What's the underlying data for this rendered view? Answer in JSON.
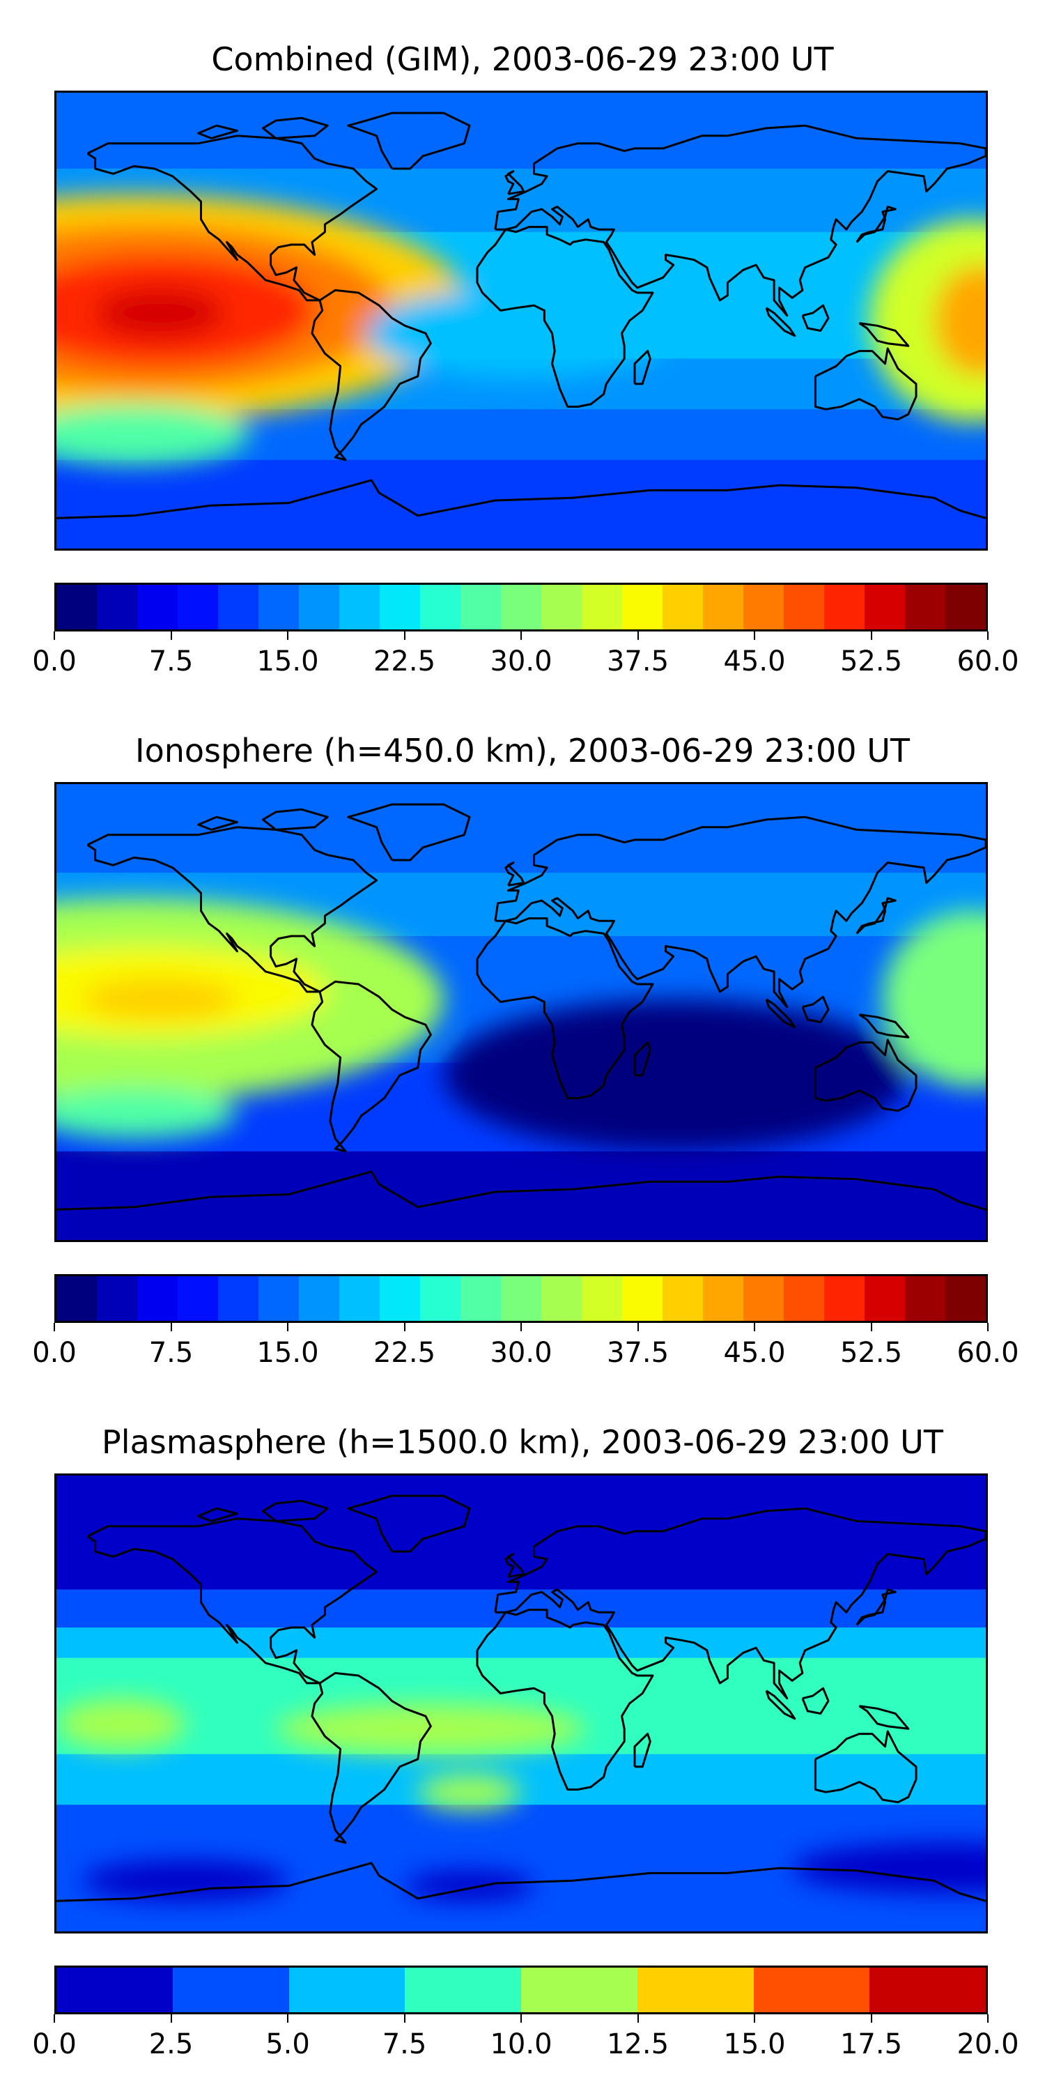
{
  "panels": [
    {
      "title": "Combined (GIM), 2003-06-29 23:00 UT",
      "colorbar": {
        "colors": [
          "#00007f",
          "#0000b8",
          "#0000f1",
          "#0010ff",
          "#003cff",
          "#0068ff",
          "#0094ff",
          "#00c0ff",
          "#00e8fa",
          "#26ffd1",
          "#50ffa6",
          "#7aff7d",
          "#a6ff50",
          "#d1ff26",
          "#fafa00",
          "#ffcf00",
          "#ffa700",
          "#ff7c00",
          "#ff5000",
          "#ff2500",
          "#d60000",
          "#9d0000",
          "#7f0000"
        ],
        "ticks": [
          "0.0",
          "7.5",
          "15.0",
          "22.5",
          "30.0",
          "37.5",
          "45.0",
          "52.5",
          "60.0"
        ]
      },
      "blobs": [
        {
          "lon": -150,
          "lat": 5,
          "rx": 130,
          "ry": 45,
          "color": "#ffcf00"
        },
        {
          "lon": -145,
          "lat": 5,
          "rx": 95,
          "ry": 33,
          "color": "#ff7c00"
        },
        {
          "lon": -140,
          "lat": 4,
          "rx": 60,
          "ry": 22,
          "color": "#ff2500"
        },
        {
          "lon": -140,
          "lat": 3,
          "rx": 25,
          "ry": 10,
          "color": "#d60000"
        },
        {
          "lon": 175,
          "lat": 0,
          "rx": 40,
          "ry": 40,
          "color": "#d1ff26"
        },
        {
          "lon": 178,
          "lat": 0,
          "rx": 18,
          "ry": 22,
          "color": "#ffa700"
        },
        {
          "lon": -150,
          "lat": -45,
          "rx": 45,
          "ry": 12,
          "color": "#50ffa6"
        },
        {
          "lon": 0,
          "lat": -5,
          "rx": 60,
          "ry": 18,
          "color": "#00c0ff"
        }
      ]
    },
    {
      "title": "Ionosphere  (h=450.0 km), 2003-06-29 23:00 UT",
      "colorbar": {
        "colors": [
          "#00007f",
          "#0000b8",
          "#0000f1",
          "#0010ff",
          "#003cff",
          "#0068ff",
          "#0094ff",
          "#00c0ff",
          "#00e8fa",
          "#26ffd1",
          "#50ffa6",
          "#7aff7d",
          "#a6ff50",
          "#d1ff26",
          "#fafa00",
          "#ffcf00",
          "#ffa700",
          "#ff7c00",
          "#ff5000",
          "#ff2500",
          "#d60000",
          "#9d0000",
          "#7f0000"
        ],
        "ticks": [
          "0.0",
          "7.5",
          "15.0",
          "22.5",
          "30.0",
          "37.5",
          "45.0",
          "52.5",
          "60.0"
        ]
      },
      "blobs": [
        {
          "lon": -150,
          "lat": 5,
          "rx": 120,
          "ry": 40,
          "color": "#a6ff50"
        },
        {
          "lon": -145,
          "lat": 8,
          "rx": 70,
          "ry": 18,
          "color": "#fafa00"
        },
        {
          "lon": -140,
          "lat": 5,
          "rx": 30,
          "ry": 8,
          "color": "#ffcf00"
        },
        {
          "lon": 175,
          "lat": 5,
          "rx": 35,
          "ry": 35,
          "color": "#7aff7d"
        },
        {
          "lon": -150,
          "lat": -40,
          "rx": 40,
          "ry": 10,
          "color": "#50ffa6"
        },
        {
          "lon": 60,
          "lat": -25,
          "rx": 90,
          "ry": 30,
          "color": "#00007f"
        }
      ]
    },
    {
      "title": "Plasmasphere (h=1500.0 km), 2003-06-29 23:00 UT",
      "colorbar": {
        "colors": [
          "#0000c8",
          "#0050ff",
          "#00c0ff",
          "#30ffc0",
          "#a6ff50",
          "#ffcf00",
          "#ff5000",
          "#c80000"
        ],
        "ticks": [
          "0.0",
          "2.5",
          "5.0",
          "7.5",
          "10.0",
          "12.5",
          "15.0",
          "17.5",
          "20.0"
        ]
      },
      "blobs": [
        {
          "lon": -155,
          "lat": -8,
          "rx": 25,
          "ry": 10,
          "color": "#a6ff50"
        },
        {
          "lon": -35,
          "lat": -10,
          "rx": 60,
          "ry": 10,
          "color": "#a6ff50"
        },
        {
          "lon": -20,
          "lat": -35,
          "rx": 20,
          "ry": 7,
          "color": "#a6ff50"
        },
        {
          "lon": -130,
          "lat": -70,
          "rx": 40,
          "ry": 8,
          "color": "#0000c8"
        },
        {
          "lon": -20,
          "lat": -72,
          "rx": 25,
          "ry": 6,
          "color": "#0000c8"
        },
        {
          "lon": 165,
          "lat": -65,
          "rx": 60,
          "ry": 10,
          "color": "#0000c8"
        }
      ]
    }
  ]
}
